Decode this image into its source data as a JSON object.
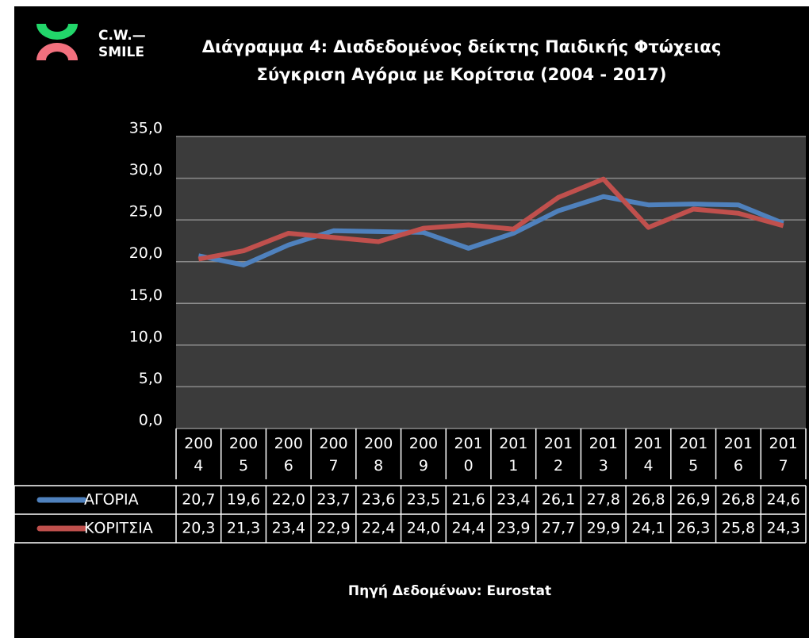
{
  "logo": [
    "C.W.—",
    "SMILE"
  ],
  "chart_data": {
    "type": "line",
    "title": [
      "Διάγραμμα 4: Διαδεδομένος δείκτης Παιδικής Φτώχειας",
      "Σύγκριση Αγόρια με Κορίτσια (2004 - 2017)"
    ],
    "source": "Πηγή  Δεδομένων: Eurostat",
    "categories": [
      "2004",
      "2005",
      "2006",
      "2007",
      "2008",
      "2009",
      "2010",
      "2011",
      "2012",
      "2013",
      "2014",
      "2015",
      "2016",
      "2017"
    ],
    "series": [
      {
        "name": "ΑΓΟΡΙΑ",
        "color": "#4f81bd",
        "values": [
          20.7,
          19.6,
          22.0,
          23.7,
          23.6,
          23.5,
          21.6,
          23.4,
          26.1,
          27.8,
          26.8,
          26.9,
          26.8,
          24.6
        ],
        "value_labels": [
          "20,7",
          "19,6",
          "22,0",
          "23,7",
          "23,6",
          "23,5",
          "21,6",
          "23,4",
          "26,1",
          "27,8",
          "26,8",
          "26,9",
          "26,8",
          "24,6"
        ]
      },
      {
        "name": "ΚΟΡΙΤΣΙΑ",
        "color": "#c0504d",
        "values": [
          20.3,
          21.3,
          23.4,
          22.9,
          22.4,
          24.0,
          24.4,
          23.9,
          27.7,
          29.9,
          24.1,
          26.3,
          25.8,
          24.3
        ],
        "value_labels": [
          "20,3",
          "21,3",
          "23,4",
          "22,9",
          "22,4",
          "24,0",
          "24,4",
          "23,9",
          "27,7",
          "29,9",
          "24,1",
          "26,3",
          "25,8",
          "24,3"
        ]
      }
    ],
    "ylim": [
      0,
      35
    ],
    "yticks": [
      {
        "value": 0,
        "label": "0,0"
      },
      {
        "value": 5,
        "label": "5,0"
      },
      {
        "value": 10,
        "label": "10,0"
      },
      {
        "value": 15,
        "label": "15,0"
      },
      {
        "value": 20,
        "label": "20,0"
      },
      {
        "value": 25,
        "label": "25,0"
      },
      {
        "value": 30,
        "label": "30,0"
      },
      {
        "value": 35,
        "label": "35,0"
      }
    ],
    "grid": true
  }
}
